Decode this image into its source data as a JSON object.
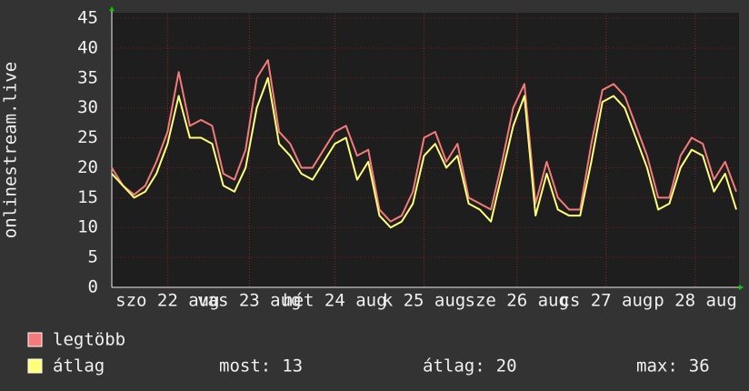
{
  "chart_data": {
    "type": "line",
    "y_label": "onlinestream.live",
    "x": [
      0,
      3,
      6,
      9,
      12,
      15,
      18,
      21,
      24,
      27,
      30,
      33,
      36,
      39,
      42,
      45,
      48,
      51,
      54,
      57,
      60,
      63,
      66,
      69,
      72,
      75,
      78,
      81,
      84,
      87,
      90,
      93,
      96,
      99,
      102,
      105,
      108,
      111,
      114,
      117,
      120,
      123,
      126,
      129,
      132,
      135,
      138,
      141,
      144,
      147,
      150,
      153,
      156,
      159,
      162,
      165,
      168
    ],
    "series": [
      {
        "name": "legtöbb",
        "color": "#f57a7a",
        "values": [
          20,
          17,
          15.5,
          17,
          21,
          26,
          36,
          27,
          28,
          27,
          19,
          18,
          23,
          35,
          38,
          26,
          24,
          20,
          20,
          23,
          26,
          27,
          22,
          23,
          13,
          11,
          12,
          16,
          25,
          26,
          21,
          24,
          15,
          14,
          13,
          21,
          30,
          34,
          14,
          21,
          15,
          13,
          13,
          24,
          33,
          34,
          32,
          27,
          22,
          15,
          15,
          22,
          25,
          24,
          18,
          21,
          16
        ]
      },
      {
        "name": "átlag",
        "color": "#ffff7a",
        "values": [
          19,
          17,
          15,
          16,
          19,
          24,
          32,
          25,
          25,
          24,
          17,
          16,
          20,
          30,
          35,
          24,
          22,
          19,
          18,
          21,
          24,
          25,
          18,
          21,
          12,
          10,
          11,
          14,
          22,
          24,
          20,
          22,
          14,
          13,
          11,
          19,
          27,
          32,
          12,
          19,
          13,
          12,
          12,
          21,
          31,
          32,
          30,
          25,
          20,
          13,
          14,
          20,
          23,
          22,
          16,
          19,
          13
        ]
      }
    ],
    "xlim": [
      0,
      168
    ],
    "xticks": [
      {
        "value": 15,
        "label": "szo 22 aug"
      },
      {
        "value": 37,
        "label": "vas 23 aug"
      },
      {
        "value": 60,
        "label": "hét 24 aug"
      },
      {
        "value": 84,
        "label": "k 25 aug"
      },
      {
        "value": 109,
        "label": "sze 26 aug"
      },
      {
        "value": 133,
        "label": "cs 27 aug"
      },
      {
        "value": 157,
        "label": "p 28 aug"
      }
    ],
    "ylim": [
      0,
      45
    ],
    "yticks": [
      0,
      5,
      10,
      15,
      20,
      25,
      30,
      35,
      40,
      45
    ],
    "grid": true,
    "stats": [
      {
        "label": "most:",
        "value": 13
      },
      {
        "label": "átlag:",
        "value": 20
      },
      {
        "label": "max:",
        "value": 36
      }
    ]
  }
}
